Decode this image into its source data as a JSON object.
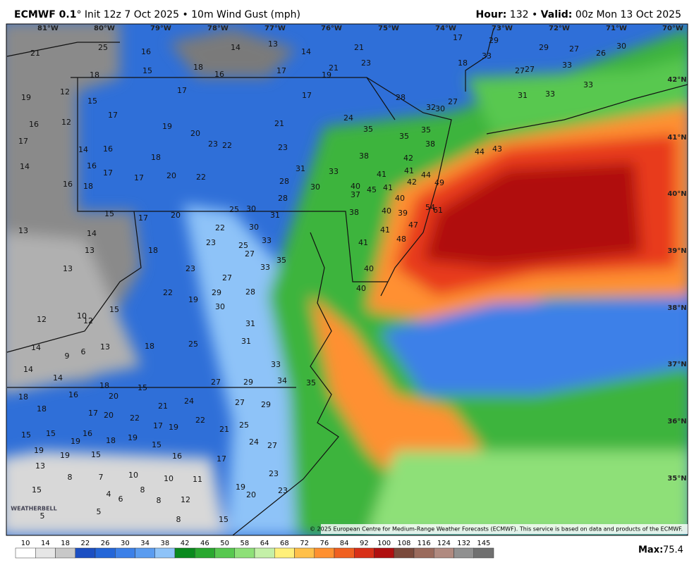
{
  "header": {
    "model": "ECMWF 0.1",
    "run": "° Init 12z 7 Oct 2025 • 10m Wind Gust (mph)",
    "hour_label": "Hour:",
    "hour": "132 •",
    "valid_label": "Valid:",
    "valid": "00z Mon 13 Oct 2025"
  },
  "lon_labels": [
    "81°W",
    "80°W",
    "79°W",
    "78°W",
    "77°W",
    "76°W",
    "75°W",
    "74°W",
    "73°W",
    "72°W",
    "71°W",
    "70°W"
  ],
  "lat_labels": [
    "42°N",
    "41°N",
    "40°N",
    "39°N",
    "38°N",
    "37°N",
    "36°N",
    "35°N"
  ],
  "map_values": [
    [
      21,
      25,
      16,
      14,
      13,
      14,
      21,
      17,
      29,
      29,
      27,
      26,
      30,
      23,
      18,
      33
    ],
    [
      18,
      15,
      18,
      16,
      17,
      19,
      21,
      27,
      27,
      33
    ],
    [
      19,
      12,
      17,
      17,
      28,
      32,
      30,
      27,
      31,
      33,
      33
    ],
    [
      15,
      16,
      12,
      17,
      19,
      21,
      24,
      35,
      35,
      35
    ],
    [
      17,
      14,
      16,
      20,
      23,
      22,
      23,
      38,
      44,
      43
    ],
    [
      14,
      16,
      17,
      18,
      31,
      33,
      38,
      42,
      44
    ],
    [
      16,
      18,
      17,
      20,
      22,
      28,
      30,
      40,
      41,
      41,
      42,
      49
    ],
    [
      15,
      17,
      20,
      25,
      30,
      28,
      37,
      45,
      41,
      40
    ],
    [
      13,
      14,
      22,
      30,
      31,
      38,
      40,
      39,
      54,
      61
    ],
    [
      13,
      18,
      23,
      25,
      27,
      33,
      41,
      41,
      47,
      48
    ],
    [
      13,
      23,
      27,
      33,
      35,
      40
    ],
    [
      15,
      22,
      19,
      29,
      28,
      30,
      40
    ],
    [
      10,
      12,
      12,
      31
    ],
    [
      14,
      9,
      6,
      13,
      18,
      25,
      31
    ],
    [
      14,
      14,
      33
    ],
    [
      18,
      15,
      27,
      29,
      34,
      35
    ],
    [
      18,
      16,
      20,
      21,
      24,
      27,
      29
    ],
    [
      18,
      17,
      20,
      22,
      17,
      19,
      22,
      21,
      25
    ],
    [
      15,
      15,
      19,
      16,
      18,
      19,
      15,
      24
    ],
    [
      19,
      19,
      15,
      16,
      17,
      27
    ],
    [
      13
    ],
    [
      8,
      7,
      10,
      10,
      11,
      23
    ],
    [
      15,
      4,
      8,
      19,
      20,
      23
    ],
    [
      5,
      6,
      8,
      12,
      15,
      8,
      5
    ]
  ],
  "colorbar": {
    "ticks": [
      10,
      14,
      18,
      22,
      26,
      30,
      34,
      38,
      42,
      46,
      50,
      58,
      64,
      68,
      72,
      76,
      84,
      92,
      100,
      108,
      116,
      124,
      132,
      145
    ],
    "colors": [
      "#ffffff",
      "#e6e6e6",
      "#c8c8c8",
      "#1c4fc2",
      "#2466d8",
      "#3c80e8",
      "#5a9cf0",
      "#8ec3f8",
      "#0a8a1e",
      "#2aa830",
      "#58c850",
      "#8ee078",
      "#c4f0a8",
      "#fff07a",
      "#ffc04a",
      "#ff9030",
      "#f06020",
      "#d83018",
      "#b01010",
      "#7a4a3c",
      "#9a6a5c",
      "#b08a80",
      "#909090",
      "#707070"
    ]
  },
  "max": {
    "label": "Max:",
    "value": 75.4
  },
  "copyright": "© 2025 European Centre for Medium-Range Weather Forecasts (ECMWF). This service is based on data and products of the ECMWF.",
  "logo": "WEATHERBELL"
}
